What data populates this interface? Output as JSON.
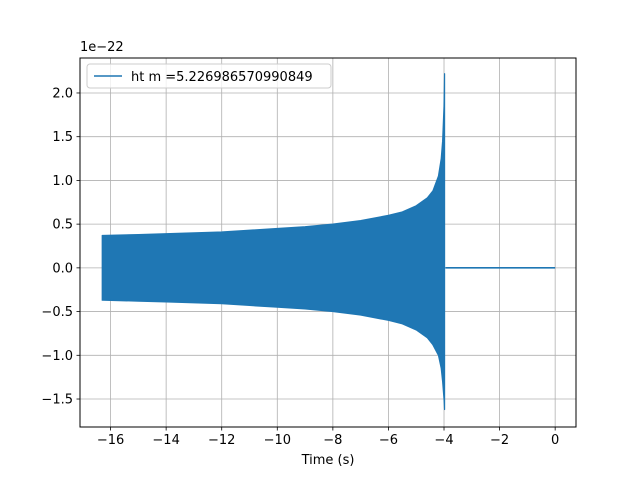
{
  "chart_data": {
    "type": "line",
    "title": "",
    "xlabel": "Time (s)",
    "ylabel": "",
    "offset_text": "1e−22",
    "xlim": [
      -17.1,
      0.75
    ],
    "ylim": [
      -1.82,
      2.4
    ],
    "x_ticks": [
      -16,
      -14,
      -12,
      -10,
      -8,
      -6,
      -4,
      -2,
      0
    ],
    "x_tick_labels": [
      "−16",
      "−14",
      "−12",
      "−10",
      "−8",
      "−6",
      "−4",
      "−2",
      "0"
    ],
    "y_ticks": [
      -1.5,
      -1.0,
      -0.5,
      0.0,
      0.5,
      1.0,
      1.5,
      2.0
    ],
    "y_tick_labels": [
      "−1.5",
      "−1.0",
      "−0.5",
      "0.0",
      "0.5",
      "1.0",
      "1.5",
      "2.0"
    ],
    "grid": true,
    "legend": "top-left",
    "series": [
      {
        "name": "ht m =5.226986570990849",
        "color": "#1f77b4",
        "envelope_x": [
          -16.3,
          -15,
          -14,
          -13,
          -12,
          -11,
          -10,
          -9,
          -8,
          -7,
          -6,
          -5.5,
          -5,
          -4.6,
          -4.4,
          -4.2,
          -4.1,
          -4.05,
          -4.0,
          -3.98
        ],
        "upper": [
          0.37,
          0.38,
          0.39,
          0.4,
          0.41,
          0.43,
          0.45,
          0.47,
          0.5,
          0.54,
          0.6,
          0.64,
          0.71,
          0.8,
          0.88,
          1.05,
          1.25,
          1.45,
          1.85,
          2.22
        ],
        "lower": [
          -0.37,
          -0.38,
          -0.39,
          -0.4,
          -0.41,
          -0.43,
          -0.45,
          -0.47,
          -0.5,
          -0.54,
          -0.6,
          -0.64,
          -0.71,
          -0.8,
          -0.88,
          -1.0,
          -1.15,
          -1.3,
          -1.5,
          -1.62
        ],
        "flat_x": [
          -3.95,
          0.0
        ],
        "flat_y": 0.0
      }
    ]
  }
}
